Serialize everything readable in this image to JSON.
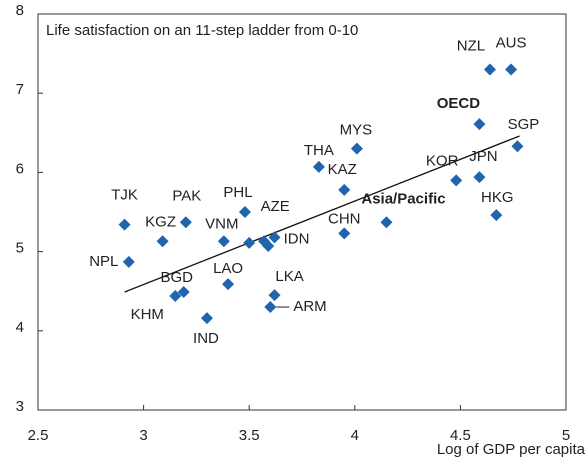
{
  "chart_data": {
    "type": "scatter",
    "title": "Life satisfaction on an 11-step ladder from 0-10",
    "xlabel": "Log of GDP per capita",
    "xlim": [
      2.5,
      5
    ],
    "xticks": [
      2.5,
      3,
      3.5,
      4,
      4.5,
      5
    ],
    "ylim": [
      3,
      8
    ],
    "yticks": [
      3,
      4,
      5,
      6,
      7,
      8
    ],
    "color": "#1f64ad",
    "trend_line": {
      "x": [
        2.91,
        4.78
      ],
      "y": [
        4.49,
        6.46
      ],
      "color": "#111111"
    },
    "points": [
      {
        "label": "NZL",
        "x": 4.64,
        "y": 7.3
      },
      {
        "label": "AUS",
        "x": 4.74,
        "y": 7.3
      },
      {
        "label": "OECD",
        "x": 4.59,
        "y": 6.61,
        "bold": true
      },
      {
        "label": "SGP",
        "x": 4.77,
        "y": 6.33
      },
      {
        "label": "MYS",
        "x": 4.01,
        "y": 6.3
      },
      {
        "label": "THA",
        "x": 3.83,
        "y": 6.07
      },
      {
        "label": "KAZ",
        "x": 3.95,
        "y": 5.78
      },
      {
        "label": "KOR",
        "x": 4.48,
        "y": 5.9
      },
      {
        "label": "JPN",
        "x": 4.59,
        "y": 5.94
      },
      {
        "label": "Asia/Pacific",
        "x": 4.15,
        "y": 5.37,
        "bold": true
      },
      {
        "label": "HKG",
        "x": 4.67,
        "y": 5.46
      },
      {
        "label": "CHN",
        "x": 3.95,
        "y": 5.23
      },
      {
        "label": "TJK",
        "x": 2.91,
        "y": 5.34
      },
      {
        "label": "PAK",
        "x": 3.2,
        "y": 5.37
      },
      {
        "label": "PHL",
        "x": 3.48,
        "y": 5.5
      },
      {
        "label": "KGZ",
        "x": 3.09,
        "y": 5.13
      },
      {
        "label": "VNM",
        "x": 3.38,
        "y": 5.13
      },
      {
        "label": "AZE",
        "x": 3.5,
        "y": 5.11
      },
      {
        "label": null,
        "x": 3.57,
        "y": 5.13
      },
      {
        "label": null,
        "x": 3.59,
        "y": 5.07
      },
      {
        "label": "IDN",
        "x": 3.62,
        "y": 5.18
      },
      {
        "label": "NPL",
        "x": 2.93,
        "y": 4.87
      },
      {
        "label": "BGD",
        "x": 3.19,
        "y": 4.49
      },
      {
        "label": "KHM",
        "x": 3.15,
        "y": 4.44
      },
      {
        "label": "LAO",
        "x": 3.4,
        "y": 4.59
      },
      {
        "label": "LKA",
        "x": 3.62,
        "y": 4.45
      },
      {
        "label": "ARM",
        "x": 3.6,
        "y": 4.3
      },
      {
        "label": "IND",
        "x": 3.3,
        "y": 4.16
      }
    ]
  }
}
